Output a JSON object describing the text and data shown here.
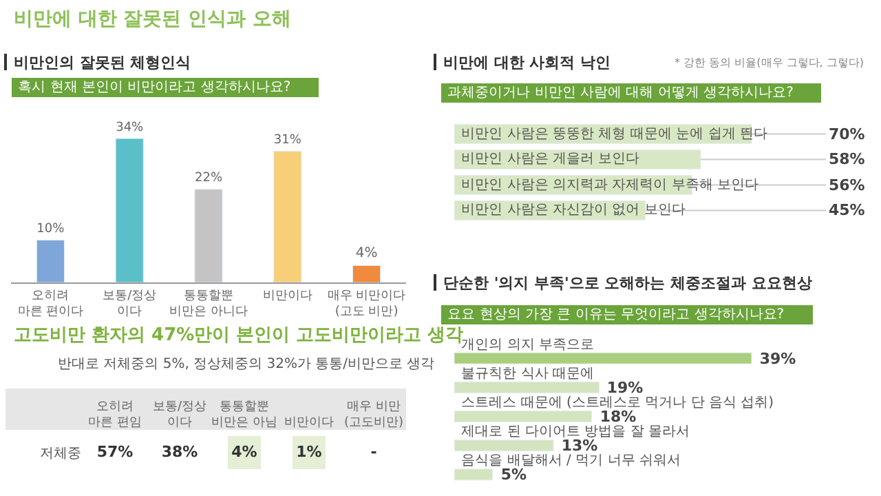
{
  "chart_data": [
    {
      "type": "bar",
      "title": "비만인의 잘못된 체형인식",
      "subtitle": "혹시 현재 본인이 비만이라고 생각하시나요?",
      "categories": [
        "오히려\n마른 편이다",
        "보통/정상\n이다",
        "통통할뿐\n비만은 아니다",
        "비만이다",
        "매우 비만이다\n(고도 비만)"
      ],
      "values": [
        10,
        34,
        22,
        31,
        4
      ],
      "colors": [
        "#7fa6d8",
        "#5bbfc9",
        "#c4c4c4",
        "#f6cf78",
        "#f08a3c"
      ],
      "value_labels": [
        "10%",
        "34%",
        "22%",
        "31%",
        "4%"
      ],
      "annotations": [
        "비만에 대한 잘못된 인식과 오해",
        "고도비만 환자의 47%만이 본인이 고도비만이라고 생각",
        "반대로 저체중의 5%, 정상체중의 32%가 통통/비만으로 생각"
      ]
    },
    {
      "type": "heatmap",
      "categories": [
        "오히려\n마른 편임",
        "보통/정상\n이다",
        "통통할뿐\n비만은 아님",
        "비만이다",
        "매우 비만\n(고도비만)"
      ],
      "y_categories": [
        "저체중"
      ],
      "cells": [
        [
          57,
          38,
          4,
          1,
          null
        ]
      ],
      "cell_labels": [
        [
          "57%",
          "38%",
          "4%",
          "1%",
          "-"
        ]
      ]
    },
    {
      "type": "bar",
      "orientation": "horizontal",
      "title": "비만에 대한 사회적 낙인",
      "subtitle": "과체중이거나 비만인 사람에 대해 어떻게 생각하시나요?",
      "categories": [
        "비만인 사람은 뚱뚱한 체형 때문에 눈에 쉽게 띈다",
        "비만인 사람은 게을러 보인다",
        "비만인 사람은 의지력과 자제력이 부족해 보인다",
        "비만인 사람은 자신감이 없어 보인다"
      ],
      "values": [
        70,
        58,
        56,
        45
      ],
      "color": "#d9e8c4",
      "value_labels": [
        "70%",
        "58%",
        "56%",
        "45%"
      ],
      "annotations": [
        "* 강한 동의 비율(매우 그렇다, 그렇다)"
      ]
    },
    {
      "type": "bar",
      "orientation": "horizontal",
      "title": "단순한 '의지 부족'으로 오해하는 체중조절과 요요현상",
      "subtitle": "요요 현상의 가장 큰 이유는 무엇이라고 생각하시나요?",
      "categories": [
        "개인의 의지 부족으로",
        "불규칙한 식사 때문에",
        "스트레스 때문에 (스트레스로 먹거나 단 음식 섭취)",
        "제대로 된 다이어트 방법을 잘 몰라서",
        "음식을 배달해서 / 먹기 너무 쉬워서"
      ],
      "values": [
        39,
        19,
        18,
        13,
        5
      ],
      "colors": [
        "#a9cf7c",
        "#d3e4bf",
        "#d3e4bf",
        "#d3e4bf",
        "#d3e4bf"
      ],
      "value_labels": [
        "39%",
        "19%",
        "18%",
        "13%",
        "5%"
      ]
    }
  ]
}
